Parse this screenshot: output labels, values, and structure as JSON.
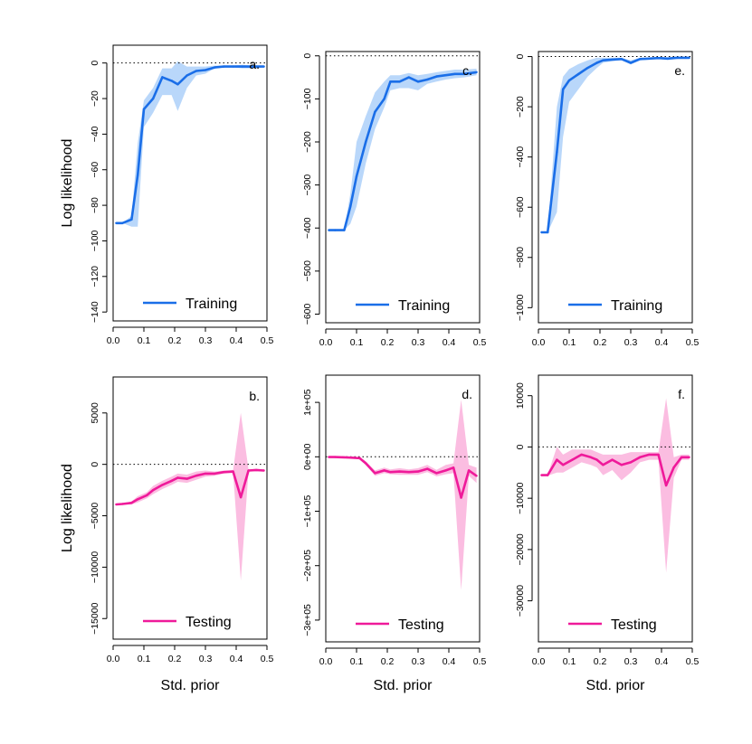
{
  "colors": {
    "training_line": "#1a6ee8",
    "training_band": "#b9d7fa",
    "testing_line": "#ef1a9a",
    "testing_band": "#fbbde1"
  },
  "chart_data": [
    {
      "type": "line",
      "panel_label": "a.",
      "ylabel": "Log likelihood",
      "xlabel": "",
      "xlim": [
        0,
        0.5
      ],
      "ylim": [
        -145,
        10
      ],
      "xticks": [
        0,
        0.1,
        0.2,
        0.3,
        0.4,
        0.5
      ],
      "xtick_labels": [
        "0.0",
        "0.1",
        "0.2",
        "0.3",
        "0.4",
        "0.5"
      ],
      "yticks": [
        0,
        -20,
        -40,
        -60,
        -80,
        -100,
        -120,
        -140
      ],
      "ytick_labels": [
        "0",
        "−20",
        "−40",
        "−60",
        "−80",
        "−100",
        "−120",
        "−140"
      ],
      "legend": "Training",
      "series_kind": "training",
      "x": [
        0.01,
        0.03,
        0.06,
        0.08,
        0.1,
        0.13,
        0.16,
        0.19,
        0.21,
        0.24,
        0.27,
        0.3,
        0.33,
        0.36,
        0.39,
        0.42,
        0.45,
        0.49
      ],
      "mean": [
        -90,
        -90,
        -88,
        -63,
        -26,
        -20,
        -8,
        -10,
        -12,
        -7,
        -4.5,
        -4,
        -2.5,
        -2,
        -2,
        -2,
        -2,
        -2
      ],
      "lower": [
        -90,
        -90,
        -92,
        -92,
        -36,
        -28,
        -18,
        -18,
        -27,
        -14,
        -7,
        -6,
        -3,
        -2.5,
        -2.5,
        -3,
        -3,
        -2.5
      ],
      "upper": [
        -90,
        -90,
        -86,
        -45,
        -21,
        -14,
        -3,
        -3,
        1,
        -2,
        -2,
        -2,
        -1.5,
        -1.5,
        -1.5,
        -1,
        -1.5,
        -1.5
      ]
    },
    {
      "type": "line",
      "panel_label": "b.",
      "ylabel": "Log likelihood",
      "xlabel": "Std. prior",
      "xlim": [
        0,
        0.5
      ],
      "ylim": [
        -17000,
        8500
      ],
      "xticks": [
        0,
        0.1,
        0.2,
        0.3,
        0.4,
        0.5
      ],
      "xtick_labels": [
        "0.0",
        "0.1",
        "0.2",
        "0.3",
        "0.4",
        "0.5"
      ],
      "yticks": [
        5000,
        0,
        -5000,
        -10000,
        -15000
      ],
      "ytick_labels": [
        "5000",
        "0",
        "−5000",
        "−10000",
        "−15000"
      ],
      "legend": "Testing",
      "series_kind": "testing",
      "x": [
        0.01,
        0.03,
        0.06,
        0.08,
        0.11,
        0.13,
        0.16,
        0.19,
        0.21,
        0.24,
        0.27,
        0.3,
        0.33,
        0.36,
        0.39,
        0.415,
        0.44,
        0.465,
        0.49
      ],
      "mean": [
        -3900,
        -3850,
        -3750,
        -3400,
        -3000,
        -2500,
        -2000,
        -1600,
        -1300,
        -1400,
        -1100,
        -900,
        -900,
        -750,
        -700,
        -3200,
        -600,
        -550,
        -600
      ],
      "lower": [
        -3950,
        -3900,
        -3900,
        -3700,
        -3300,
        -2900,
        -2400,
        -2000,
        -1700,
        -1800,
        -1500,
        -1200,
        -1100,
        -900,
        -850,
        -11300,
        -700,
        -650,
        -700
      ],
      "upper": [
        -3850,
        -3800,
        -3600,
        -3100,
        -2700,
        -2100,
        -1600,
        -1200,
        -900,
        -1000,
        -700,
        -600,
        -700,
        -600,
        -550,
        5000,
        -500,
        -450,
        -500
      ]
    },
    {
      "type": "line",
      "panel_label": "c.",
      "ylabel": "",
      "xlabel": "",
      "xlim": [
        0,
        0.5
      ],
      "ylim": [
        -620,
        10
      ],
      "xticks": [
        0,
        0.1,
        0.2,
        0.3,
        0.4,
        0.5
      ],
      "xtick_labels": [
        "0.0",
        "0.1",
        "0.2",
        "0.3",
        "0.4",
        "0.5"
      ],
      "yticks": [
        0,
        -100,
        -200,
        -300,
        -400,
        -500,
        -600
      ],
      "ytick_labels": [
        "0",
        "−100",
        "−200",
        "−300",
        "−400",
        "−500",
        "−600"
      ],
      "legend": "Training",
      "series_kind": "training",
      "x": [
        0.01,
        0.03,
        0.06,
        0.08,
        0.1,
        0.13,
        0.16,
        0.19,
        0.21,
        0.24,
        0.27,
        0.3,
        0.33,
        0.36,
        0.39,
        0.42,
        0.45,
        0.49
      ],
      "mean": [
        -405,
        -405,
        -405,
        -350,
        -280,
        -200,
        -130,
        -100,
        -60,
        -60,
        -50,
        -60,
        -55,
        -48,
        -45,
        -42,
        -42,
        -38
      ],
      "lower": [
        -405,
        -405,
        -405,
        -390,
        -350,
        -250,
        -170,
        -120,
        -80,
        -75,
        -75,
        -80,
        -65,
        -60,
        -55,
        -52,
        -50,
        -45
      ],
      "upper": [
        -405,
        -405,
        -405,
        -320,
        -200,
        -140,
        -85,
        -60,
        -45,
        -45,
        -40,
        -45,
        -42,
        -38,
        -35,
        -32,
        -32,
        -30
      ]
    },
    {
      "type": "line",
      "panel_label": "d.",
      "ylabel": "",
      "xlabel": "Std. prior",
      "xlim": [
        0,
        0.5
      ],
      "ylim": [
        -340000,
        150000
      ],
      "xticks": [
        0,
        0.1,
        0.2,
        0.3,
        0.4,
        0.5
      ],
      "xtick_labels": [
        "0.0",
        "0.1",
        "0.2",
        "0.3",
        "0.4",
        "0.5"
      ],
      "yticks": [
        100000,
        0,
        -100000,
        -200000,
        -300000
      ],
      "ytick_labels": [
        "1e+05",
        "0e+00",
        "−1e+05",
        "−2e+05",
        "−3e+05"
      ],
      "legend": "Testing",
      "series_kind": "testing",
      "x": [
        0.01,
        0.03,
        0.06,
        0.08,
        0.11,
        0.13,
        0.16,
        0.19,
        0.21,
        0.24,
        0.27,
        0.3,
        0.33,
        0.36,
        0.39,
        0.415,
        0.44,
        0.465,
        0.49
      ],
      "mean": [
        -500,
        -500,
        -1000,
        -1500,
        -2500,
        -12000,
        -30000,
        -25000,
        -28000,
        -27000,
        -28000,
        -27000,
        -22000,
        -30000,
        -25000,
        -20000,
        -75000,
        -25000,
        -35000
      ],
      "lower": [
        -1500,
        -1500,
        -2000,
        -3000,
        -4000,
        -15000,
        -35000,
        -30000,
        -32000,
        -33000,
        -33000,
        -33000,
        -28000,
        -36000,
        -32000,
        -30000,
        -245000,
        -35000,
        -48000
      ],
      "upper": [
        500,
        500,
        0,
        -500,
        -1000,
        -8000,
        -25000,
        -20000,
        -23000,
        -21000,
        -23000,
        -21000,
        -15000,
        -24000,
        -15000,
        -12000,
        105000,
        -15000,
        -20000
      ]
    },
    {
      "type": "line",
      "panel_label": "e.",
      "ylabel": "",
      "xlabel": "",
      "xlim": [
        0,
        0.5
      ],
      "ylim": [
        -1060,
        20
      ],
      "xticks": [
        0,
        0.1,
        0.2,
        0.3,
        0.4,
        0.5
      ],
      "xtick_labels": [
        "0.0",
        "0.1",
        "0.2",
        "0.3",
        "0.4",
        "0.5"
      ],
      "yticks": [
        0,
        -200,
        -400,
        -600,
        -800,
        -1000
      ],
      "ytick_labels": [
        "0",
        "−200",
        "−400",
        "−600",
        "−800",
        "−1000"
      ],
      "legend": "Training",
      "series_kind": "training",
      "x": [
        0.01,
        0.03,
        0.06,
        0.08,
        0.1,
        0.13,
        0.16,
        0.19,
        0.21,
        0.24,
        0.27,
        0.3,
        0.33,
        0.36,
        0.39,
        0.42,
        0.45,
        0.49
      ],
      "mean": [
        -700,
        -700,
        -380,
        -130,
        -95,
        -70,
        -45,
        -25,
        -15,
        -12,
        -10,
        -25,
        -10,
        -8,
        -6,
        -8,
        -5,
        -5
      ],
      "lower": [
        -700,
        -700,
        -620,
        -320,
        -180,
        -130,
        -80,
        -45,
        -25,
        -18,
        -14,
        -32,
        -15,
        -12,
        -10,
        -14,
        -9,
        -9
      ],
      "upper": [
        -700,
        -700,
        -200,
        -80,
        -50,
        -30,
        -15,
        -5,
        -5,
        -5,
        -5,
        -15,
        -5,
        -4,
        -3,
        -3,
        -2,
        -2
      ]
    },
    {
      "type": "line",
      "panel_label": "f.",
      "ylabel": "",
      "xlabel": "Std. prior",
      "xlim": [
        0,
        0.5
      ],
      "ylim": [
        -38000,
        14000
      ],
      "xticks": [
        0,
        0.1,
        0.2,
        0.3,
        0.4,
        0.5
      ],
      "xtick_labels": [
        "0.0",
        "0.1",
        "0.2",
        "0.3",
        "0.4",
        "0.5"
      ],
      "yticks": [
        10000,
        0,
        -10000,
        -20000,
        -30000
      ],
      "ytick_labels": [
        "10000",
        "0",
        "−10000",
        "−20000",
        "−30000"
      ],
      "legend": "Testing",
      "series_kind": "testing",
      "x": [
        0.01,
        0.03,
        0.06,
        0.08,
        0.11,
        0.14,
        0.17,
        0.19,
        0.21,
        0.24,
        0.27,
        0.3,
        0.33,
        0.36,
        0.39,
        0.415,
        0.44,
        0.465,
        0.49
      ],
      "mean": [
        -5500,
        -5500,
        -2500,
        -3500,
        -2500,
        -1500,
        -2000,
        -2500,
        -3500,
        -2500,
        -3500,
        -3000,
        -2000,
        -1500,
        -1500,
        -7500,
        -4000,
        -2000,
        -2000
      ],
      "lower": [
        -5600,
        -5600,
        -5000,
        -5000,
        -4000,
        -3000,
        -3500,
        -4000,
        -5500,
        -4500,
        -6500,
        -5000,
        -3000,
        -2500,
        -2500,
        -24500,
        -6000,
        -2500,
        -2500
      ],
      "upper": [
        -5400,
        -5400,
        0,
        -1500,
        -500,
        -500,
        -500,
        -1000,
        -1500,
        -1500,
        -1500,
        -1000,
        -1000,
        -1000,
        -1000,
        9500,
        -2000,
        -1500,
        -1500
      ]
    }
  ]
}
